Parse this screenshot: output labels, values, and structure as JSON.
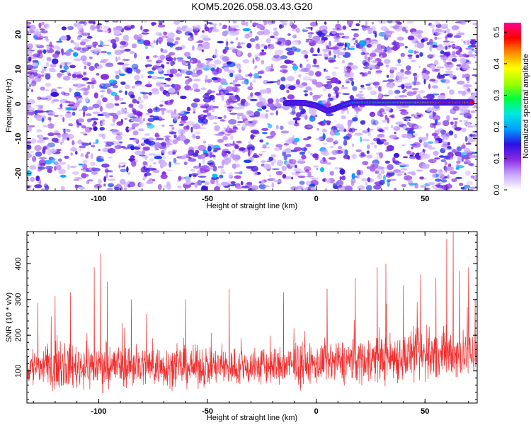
{
  "figure_title": "KOM5.2026.058.03.43.G20",
  "chart_data": [
    {
      "type": "heatmap",
      "panel": "spectrogram",
      "xlabel": "Height of straight line (km)",
      "ylabel": "Frequency (Hz)",
      "xlim": [
        -133,
        74
      ],
      "ylim": [
        -25,
        24
      ],
      "xticks": [
        -100,
        -50,
        0,
        50
      ],
      "yticks": [
        -20,
        -10,
        0,
        10,
        20
      ],
      "grid": false,
      "colorbar": {
        "label": "Normalized spectral amplitude",
        "range": [
          0,
          0.53
        ],
        "ticks": [
          0.0,
          0.1,
          0.2,
          0.3,
          0.4,
          0.5
        ],
        "colors": [
          "#ffffff",
          "#c8a8ff",
          "#8a2be2",
          "#2a10e0",
          "#00a0ff",
          "#00e8e0",
          "#00ff40",
          "#a0ff00",
          "#ffff00",
          "#ff9000",
          "#ff0000",
          "#ff0090"
        ]
      },
      "signal_track": {
        "description_value_frequency_hz": 0,
        "points": [
          [
            -14,
            0.2
          ],
          [
            -10,
            0.3
          ],
          [
            -5,
            0.2
          ],
          [
            0,
            -0.5
          ],
          [
            5,
            -2.0
          ],
          [
            8,
            -1.5
          ],
          [
            12,
            -0.5
          ],
          [
            16,
            0.3
          ],
          [
            22,
            0.4
          ],
          [
            30,
            0.4
          ],
          [
            40,
            0.4
          ],
          [
            50,
            0.4
          ],
          [
            60,
            0.4
          ],
          [
            72,
            0.4
          ]
        ],
        "amplitudes": [
          0.13,
          0.12,
          0.1,
          0.11,
          0.1,
          0.12,
          0.15,
          0.22,
          0.28,
          0.31,
          0.33,
          0.35,
          0.5,
          0.45
        ]
      }
    },
    {
      "type": "line",
      "panel": "snr",
      "xlabel": "Height of straight line (km)",
      "ylabel": "SNR (10 * v/v)",
      "xlim": [
        -133,
        74
      ],
      "ylim": [
        10,
        490
      ],
      "xticks": [
        -100,
        -50,
        0,
        50
      ],
      "yticks": [
        100,
        200,
        300,
        400
      ],
      "grid": false,
      "color": "#ee3030",
      "series": [
        {
          "name": "SNR",
          "sample_step_km": 0.12,
          "baseline": [
            [
              -133,
              110
            ],
            [
              -90,
              115
            ],
            [
              -50,
              110
            ],
            [
              -20,
              112
            ],
            [
              0,
              118
            ],
            [
              20,
              130
            ],
            [
              40,
              140
            ],
            [
              60,
              145
            ],
            [
              74,
              150
            ]
          ],
          "noise_spread": [
            [
              -133,
              60
            ],
            [
              -100,
              65
            ],
            [
              -50,
              55
            ],
            [
              0,
              58
            ],
            [
              30,
              70
            ],
            [
              60,
              80
            ],
            [
              74,
              75
            ]
          ],
          "peaks": [
            [
              -128,
              290
            ],
            [
              -120,
              310
            ],
            [
              -113,
              320
            ],
            [
              -102,
              390
            ],
            [
              -99,
              430
            ],
            [
              -96,
              350
            ],
            [
              -85,
              300
            ],
            [
              -78,
              260
            ],
            [
              -60,
              300
            ],
            [
              -40,
              330
            ],
            [
              -15,
              320
            ],
            [
              5,
              330
            ],
            [
              18,
              360
            ],
            [
              28,
              390
            ],
            [
              32,
              400
            ],
            [
              40,
              340
            ],
            [
              48,
              370
            ],
            [
              55,
              360
            ],
            [
              60,
              470
            ],
            [
              63,
              490
            ],
            [
              66,
              380
            ],
            [
              70,
              390
            ],
            [
              73,
              300
            ]
          ]
        }
      ]
    }
  ]
}
